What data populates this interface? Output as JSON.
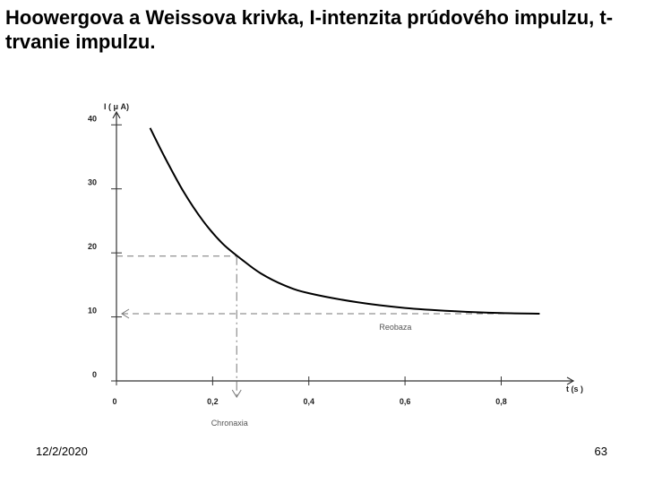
{
  "slide": {
    "title": "Hoowergova a Weissova krivka, I-intenzita prúdového impulzu, t-trvanie impulzu.",
    "date": "12/2/2020",
    "page": "63"
  },
  "chart_data": {
    "type": "line",
    "title": "",
    "xlabel": "t (s )",
    "ylabel": "I ( μ A)",
    "xlim": [
      0,
      0.95
    ],
    "ylim": [
      0,
      42
    ],
    "xticks": [
      "0",
      "0,2",
      "0,4",
      "0,6",
      "0,8"
    ],
    "yticks": [
      "0",
      "10",
      "20",
      "30",
      "40"
    ],
    "grid": false,
    "series": [
      {
        "x": [
          0.07,
          0.1,
          0.14,
          0.18,
          0.22,
          0.26,
          0.3,
          0.35,
          0.4,
          0.5,
          0.6,
          0.7,
          0.8,
          0.88
        ],
        "y": [
          39.5,
          35.0,
          29.5,
          25.0,
          21.5,
          19.0,
          16.8,
          14.9,
          13.7,
          12.3,
          11.4,
          10.9,
          10.6,
          10.5
        ]
      }
    ],
    "annotations": {
      "reobaza_label": "Reobaza",
      "reobaza_value": 10.5,
      "chronaxia_label": "Chronaxia",
      "chronaxia_value": 0.25,
      "chronaxia_current": 19.5
    },
    "colors": {
      "curve": "#000000",
      "axis": "#333333",
      "guide": "#777777"
    }
  }
}
